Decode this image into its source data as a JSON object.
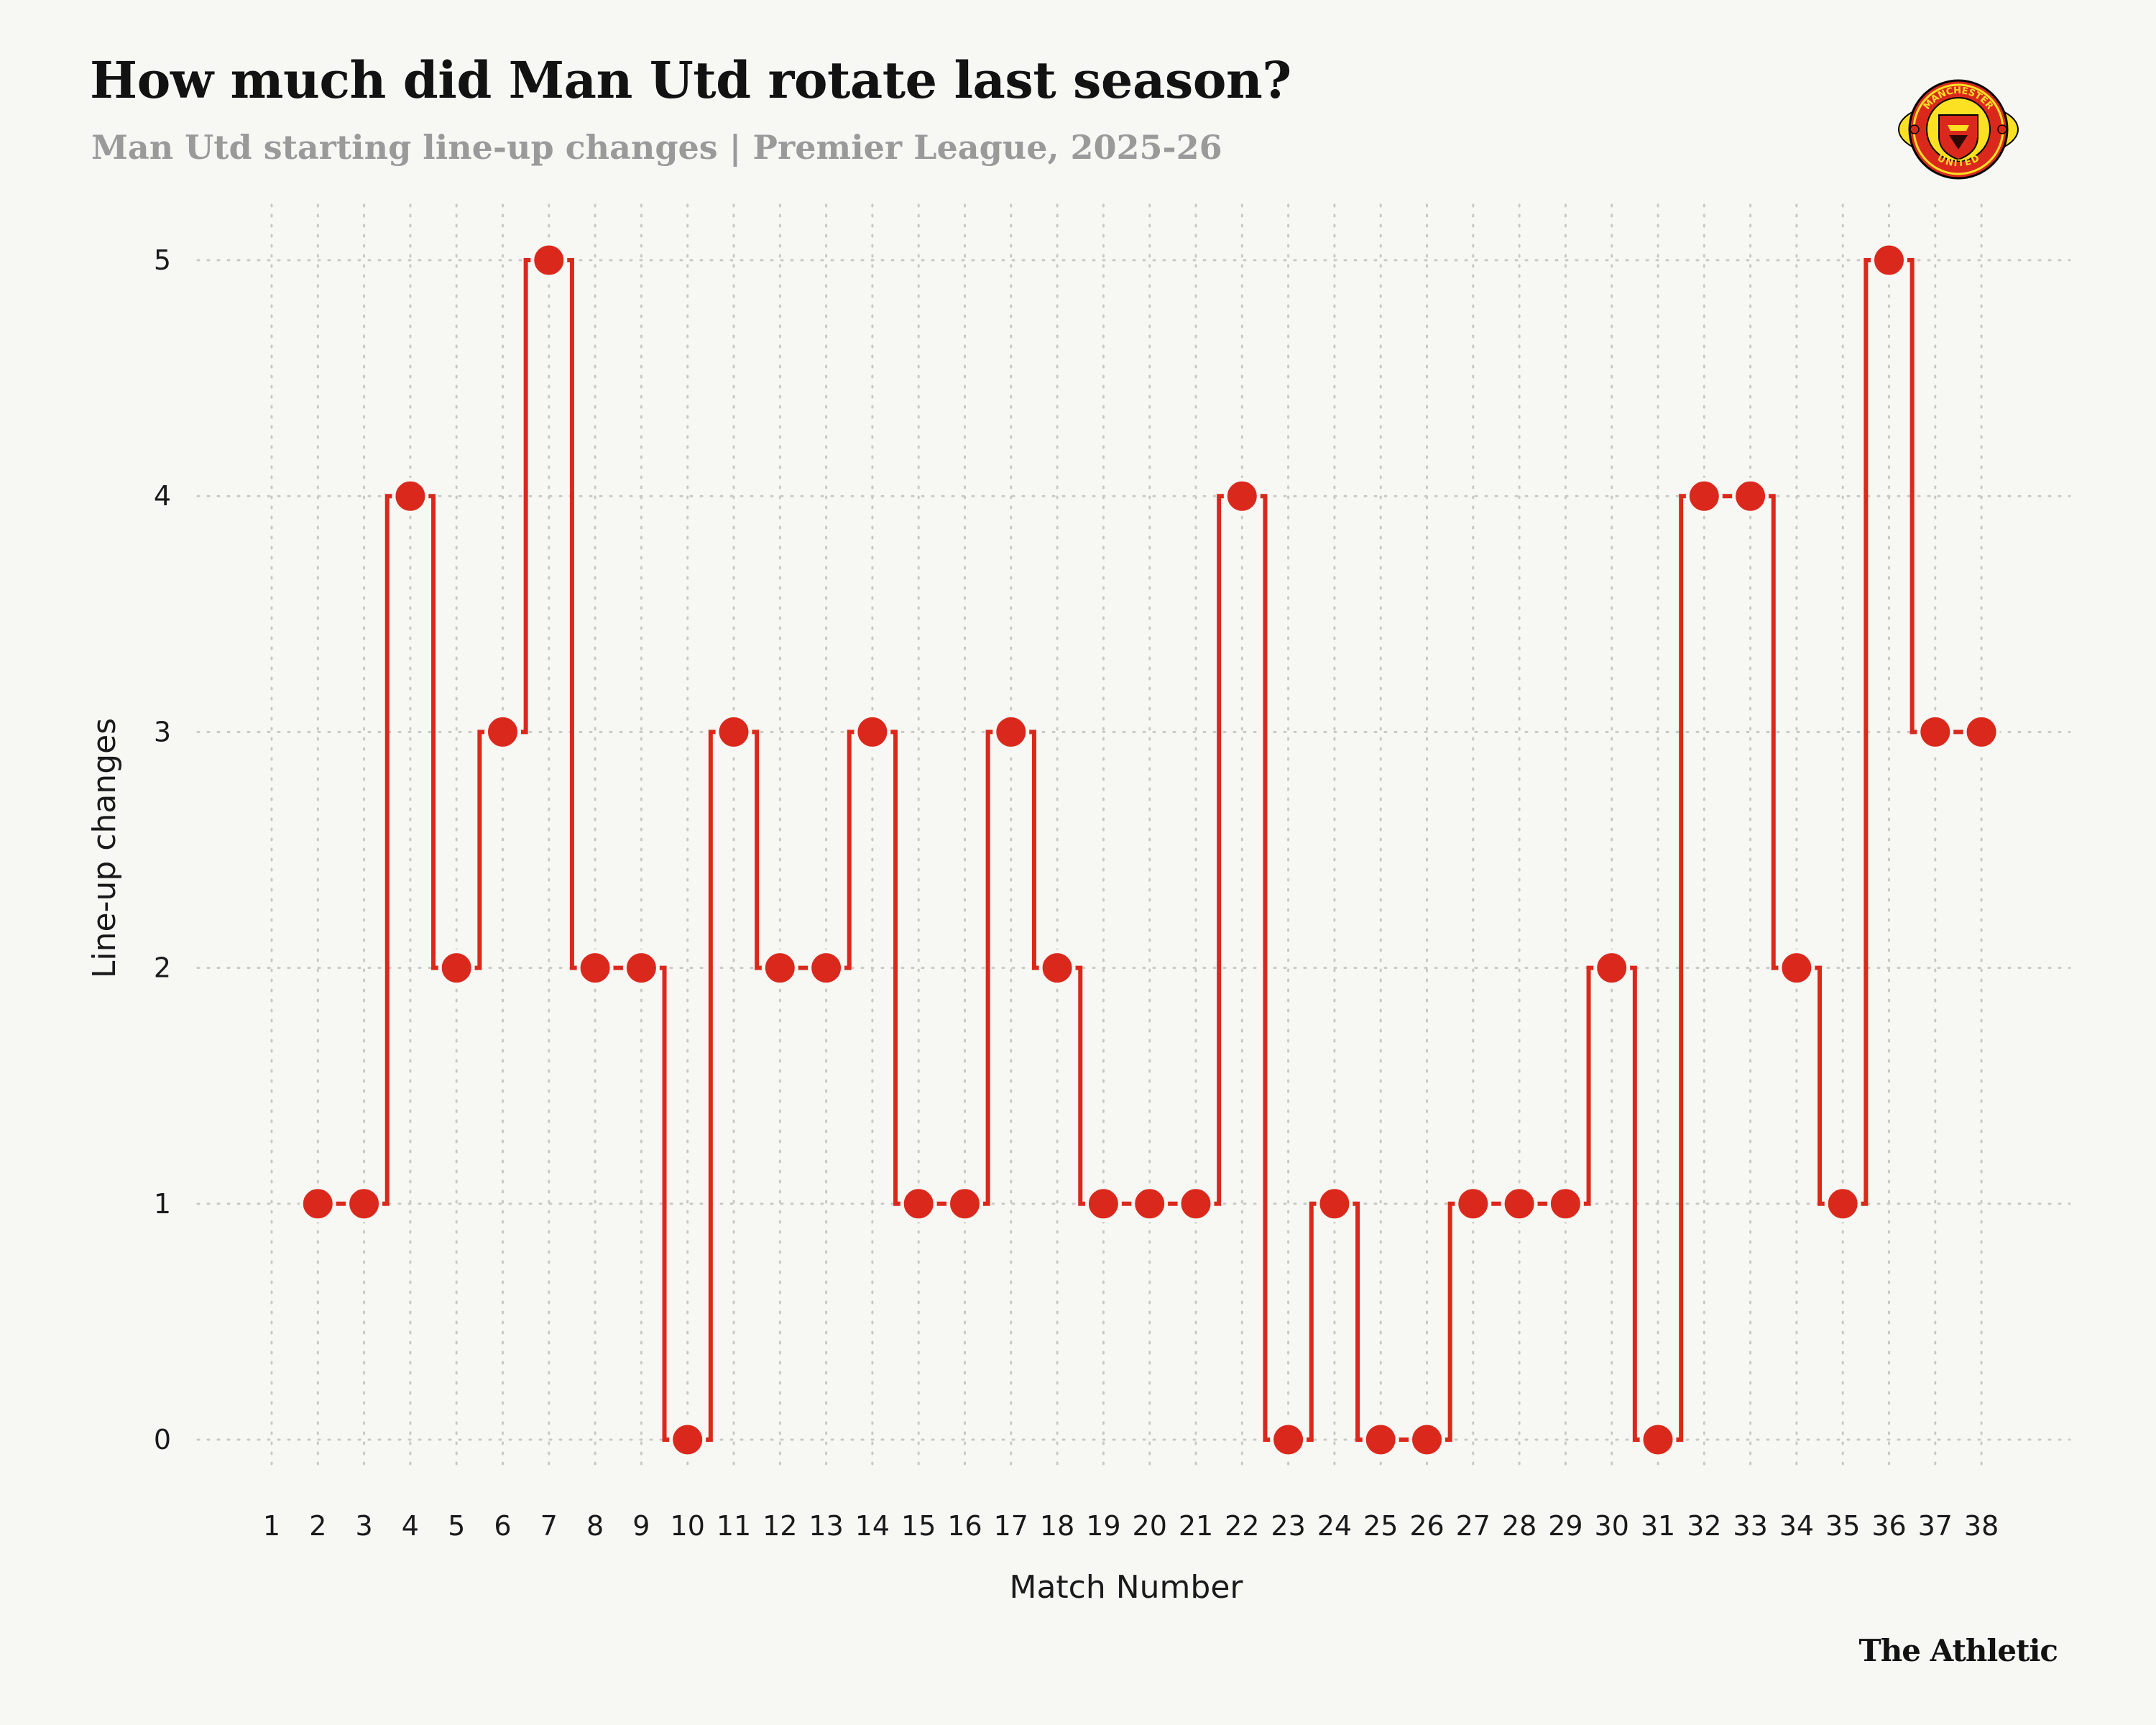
{
  "header": {
    "title": "How much did Man Utd rotate last season?",
    "subtitle": "Man Utd starting line-up changes | Premier League, 2025-26"
  },
  "crest": {
    "icon": "manchester-united-crest-icon",
    "top_text": "MANCHESTER",
    "bottom_text": "UNITED"
  },
  "footer": {
    "brand": "The Athletic"
  },
  "colors": {
    "series": "#da291c",
    "background": "#f7f7f4",
    "grid": "#c8c8c4",
    "crest_yellow": "#fbe122"
  },
  "chart_data": {
    "type": "line",
    "step": "after",
    "xlabel": "Match Number",
    "ylabel": "Line-up changes",
    "xlim": [
      1,
      38
    ],
    "ylim": [
      0,
      5
    ],
    "grid": true,
    "x_ticks": [
      1,
      2,
      3,
      4,
      5,
      6,
      7,
      8,
      9,
      10,
      11,
      12,
      13,
      14,
      15,
      16,
      17,
      18,
      19,
      20,
      21,
      22,
      23,
      24,
      25,
      26,
      27,
      28,
      29,
      30,
      31,
      32,
      33,
      34,
      35,
      36,
      37,
      38
    ],
    "y_ticks": [
      0,
      1,
      2,
      3,
      4,
      5
    ],
    "series": [
      {
        "x": [
          2,
          3,
          4,
          5,
          6,
          7,
          8,
          9,
          10,
          11,
          12,
          13,
          14,
          15,
          16,
          17,
          18,
          19,
          20,
          21,
          22,
          23,
          24,
          25,
          26,
          27,
          28,
          29,
          30,
          31,
          32,
          33,
          34,
          35,
          36,
          37,
          38
        ],
        "values": [
          1,
          1,
          4,
          2,
          3,
          5,
          2,
          2,
          0,
          3,
          2,
          2,
          3,
          1,
          1,
          3,
          2,
          1,
          1,
          1,
          4,
          0,
          1,
          0,
          0,
          1,
          1,
          1,
          2,
          0,
          4,
          4,
          2,
          1,
          5,
          3,
          3
        ]
      }
    ]
  }
}
